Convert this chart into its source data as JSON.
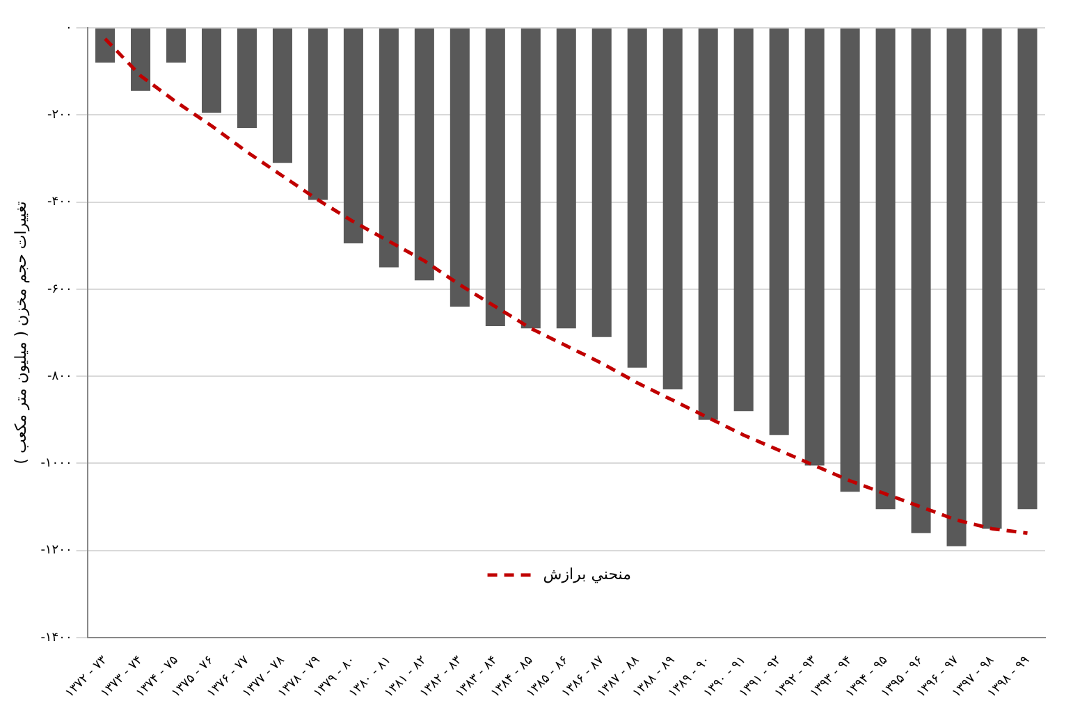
{
  "chart_data": {
    "type": "bar",
    "ylabel": "تغییرات حجم مخزن ( میلیون متر مکعب )",
    "categories": [
      "۱۳۷۲ - ۷۳",
      "۱۳۷۳ - ۷۴",
      "۱۳۷۴ - ۷۵",
      "۱۳۷۵ - ۷۶",
      "۱۳۷۶ - ۷۷",
      "۱۳۷۷ - ۷۸",
      "۱۳۷۸ - ۷۹",
      "۱۳۷۹ - ۸۰",
      "۱۳۸۰ - ۸۱",
      "۱۳۸۱ - ۸۲",
      "۱۳۸۲ - ۸۳",
      "۱۳۸۳ - ۸۴",
      "۱۳۸۴ - ۸۵",
      "۱۳۸۵ - ۸۶",
      "۱۳۸۶ - ۸۷",
      "۱۳۸۷ - ۸۸",
      "۱۳۸۸ - ۸۹",
      "۱۳۸۹ - ۹۰",
      "۱۳۹۰ - ۹۱",
      "۱۳۹۱ - ۹۲",
      "۱۳۹۲ - ۹۳",
      "۱۳۹۳ - ۹۴",
      "۱۳۹۴ - ۹۵",
      "۱۳۹۵ - ۹۶",
      "۱۳۹۶ - ۹۷",
      "۱۳۹۷ - ۹۸",
      "۱۳۹۸ - ۹۹"
    ],
    "series": [
      {
        "color": "#595959",
        "values": [
          -80,
          -145,
          -80,
          -195,
          -230,
          -310,
          -395,
          -495,
          -550,
          -580,
          -640,
          -685,
          -690,
          -690,
          -710,
          -780,
          -830,
          -900,
          -880,
          -935,
          -1005,
          -1065,
          -1105,
          -1160,
          -1190,
          -1150,
          -1105
        ]
      },
      {
        "type": "line",
        "name": "منحني برازش",
        "color": "#c00000",
        "line_style": "dashed",
        "marker": "none",
        "values": [
          -25,
          -110,
          -170,
          -225,
          -285,
          -340,
          -395,
          -445,
          -490,
          -535,
          -590,
          -640,
          -690,
          -730,
          -770,
          -815,
          -855,
          -895,
          -935,
          -970,
          -1005,
          -1040,
          -1070,
          -1100,
          -1130,
          -1150,
          -1160
        ]
      }
    ],
    "ylim": [
      -1400,
      0
    ],
    "yticks": [
      {
        "value": 0,
        "label": "۰"
      },
      {
        "value": -200,
        "label": "-۲۰۰"
      },
      {
        "value": -400,
        "label": "-۴۰۰"
      },
      {
        "value": -600,
        "label": "-۶۰۰"
      },
      {
        "value": -800,
        "label": "-۸۰۰"
      },
      {
        "value": -1000,
        "label": "-۱۰۰۰"
      },
      {
        "value": -1200,
        "label": "-۱۲۰۰"
      },
      {
        "value": -1400,
        "label": "-۱۴۰۰"
      }
    ],
    "grid": "y",
    "legend": "bottom"
  }
}
